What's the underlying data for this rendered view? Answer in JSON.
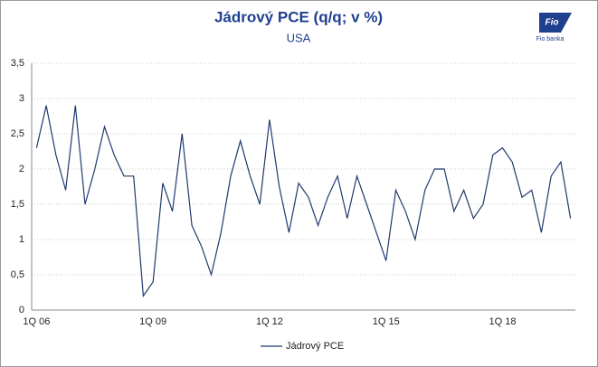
{
  "logo": {
    "mark": "Fio",
    "text": "Fio banka"
  },
  "chart_data": {
    "type": "line",
    "title": "Jádrový PCE (q/q; v %)",
    "subtitle": "USA",
    "categories": [
      "1Q  06",
      null,
      null,
      null,
      null,
      null,
      null,
      null,
      null,
      null,
      null,
      null,
      "1Q  09",
      null,
      null,
      null,
      null,
      null,
      null,
      null,
      null,
      null,
      null,
      null,
      "1Q 12",
      null,
      null,
      null,
      null,
      null,
      null,
      null,
      null,
      null,
      null,
      null,
      "1Q 15",
      null,
      null,
      null,
      null,
      null,
      null,
      null,
      null,
      null,
      null,
      null,
      "1Q 18",
      null,
      null,
      null,
      null,
      null,
      null,
      null
    ],
    "series": [
      {
        "name": "Jádrový PCE",
        "color": "#1f3a6e",
        "values": [
          2.3,
          2.9,
          2.2,
          1.7,
          2.9,
          1.5,
          2.0,
          2.6,
          2.2,
          1.9,
          1.9,
          0.2,
          0.4,
          1.8,
          1.4,
          2.5,
          1.2,
          0.9,
          0.5,
          1.1,
          1.9,
          2.4,
          1.9,
          1.5,
          2.7,
          1.75,
          1.1,
          1.8,
          1.6,
          1.2,
          1.6,
          1.9,
          1.3,
          1.9,
          1.5,
          1.1,
          0.7,
          1.7,
          1.4,
          1.0,
          1.7,
          2.0,
          2.0,
          1.4,
          1.7,
          1.3,
          1.5,
          2.2,
          2.3,
          2.1,
          1.6,
          1.7,
          1.1,
          1.9,
          2.1,
          1.3
        ]
      }
    ],
    "ylim": [
      0,
      3.5
    ],
    "yticks": [
      0,
      {
        "value": 0.5,
        "label": "0,5"
      },
      1,
      {
        "value": 1.5,
        "label": "1,5"
      },
      2,
      {
        "value": 2.5,
        "label": "2,5"
      },
      3,
      {
        "value": 3.5,
        "label": "3,5"
      }
    ],
    "grid": true,
    "legend": "bottom"
  }
}
